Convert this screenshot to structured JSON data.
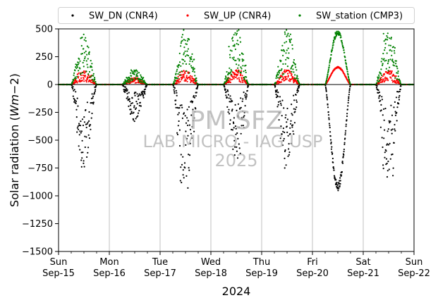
{
  "chart_data": {
    "type": "scatter",
    "ylabel": "Solar radiation ($W m{-2}$)",
    "ylabel_text": "Solar radiation (",
    "ylabel_unit": "Wm",
    "ylabel_exp": "−2",
    "ylabel_close": ")",
    "xlabel": "2024",
    "ylim": [
      -1500,
      500
    ],
    "yticks": [
      500,
      250,
      0,
      -250,
      -500,
      -750,
      -1000,
      -1250,
      -1500
    ],
    "ytick_labels": [
      "500",
      "250",
      "0",
      "−250",
      "−500",
      "−750",
      "−1000",
      "−1250",
      "−1500"
    ],
    "xlim_days": [
      "2024-09-15",
      "2024-09-22"
    ],
    "xticks": [
      {
        "date": "2024-09-15",
        "day": "Sun",
        "label": "Sep-15"
      },
      {
        "date": "2024-09-16",
        "day": "Mon",
        "label": "Sep-16"
      },
      {
        "date": "2024-09-17",
        "day": "Tue",
        "label": "Sep-17"
      },
      {
        "date": "2024-09-18",
        "day": "Wed",
        "label": "Sep-18"
      },
      {
        "date": "2024-09-19",
        "day": "Thu",
        "label": "Sep-19"
      },
      {
        "date": "2024-09-20",
        "day": "Fri",
        "label": "Sep-20"
      },
      {
        "date": "2024-09-21",
        "day": "Sat",
        "label": "Sep-21"
      },
      {
        "date": "2024-09-22",
        "day": "Sun",
        "label": "Sep-22"
      }
    ],
    "grid": "vertical-days",
    "legend_placement": "top-center",
    "series": [
      {
        "name": "SW_DN (CNR4)",
        "color": "#000000",
        "daily_peak_values": [
          -740,
          -330,
          -930,
          -660,
          -750,
          -920,
          -830
        ]
      },
      {
        "name": "SW_UP (CNR4)",
        "color": "#ff0000",
        "daily_peak_values": [
          120,
          60,
          125,
          130,
          130,
          155,
          125
        ]
      },
      {
        "name": "SW_station (CMP3)",
        "color": "#008000",
        "daily_peak_values": [
          450,
          130,
          490,
          490,
          490,
          465,
          460
        ]
      }
    ],
    "watermark": {
      "line1": "PM SFZ",
      "line2": "LAB MICRO - IAG USP",
      "line3": "2025"
    }
  }
}
